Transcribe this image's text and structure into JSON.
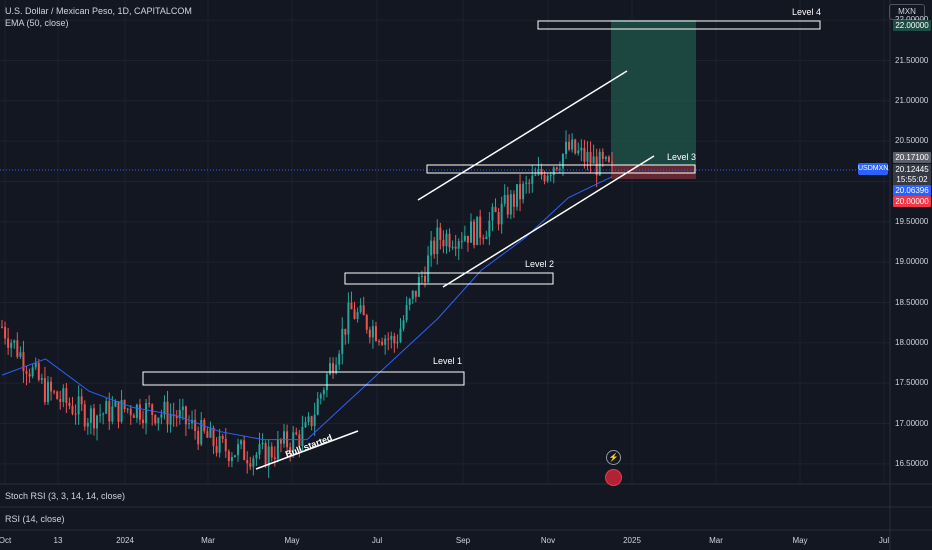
{
  "header": {
    "symbol_line": "U.S. Dollar / Mexican Peso, 1D, CAPITALCOM",
    "indicator_line": "EMA (50, close)"
  },
  "currency_button": "MXN",
  "symbol_tag": "USDMXN",
  "price_tags": {
    "grey": "20.17100",
    "last": "20.12445",
    "countdown": "15:55:02",
    "ema": "20.06396",
    "stop": "20.00000",
    "target": "22.00000"
  },
  "panes": {
    "stoch_label": "Stoch RSI (3, 3, 14, 14, close)",
    "rsi_label": "RSI (14, close)"
  },
  "annotations": {
    "level1": "Level 1",
    "level2": "Level 2",
    "level3": "Level 3",
    "level4": "Level 4",
    "bull": "Bull started"
  },
  "colors": {
    "background": "#131722",
    "up": "#26a69a",
    "down": "#ef5350",
    "ema": "#2962ff",
    "target_zone": "#1e4d45",
    "stop_zone": "#6b2a33"
  },
  "icons": [
    "flash-icon",
    "us-flag-icon"
  ],
  "chart_data": {
    "type": "candlestick",
    "title": "U.S. Dollar / Mexican Peso, 1D, CAPITALCOM",
    "y_ticks": [
      "16.50000",
      "17.00000",
      "17.50000",
      "18.00000",
      "18.50000",
      "19.00000",
      "19.50000",
      "20.00000",
      "20.50000",
      "21.00000",
      "21.50000",
      "22.00000"
    ],
    "x_ticks": [
      "Oct",
      "13",
      "2024",
      "Mar",
      "May",
      "Jul",
      "Sep",
      "Nov",
      "2025",
      "Mar",
      "May",
      "Jul"
    ],
    "ylim": [
      16.25,
      22.25
    ],
    "series": [
      {
        "name": "USDMXN",
        "x": [
          "2023-10",
          "2023-11",
          "2023-12",
          "2024-01",
          "2024-02",
          "2024-03",
          "2024-04",
          "2024-05",
          "2024-06",
          "2024-07",
          "2024-08",
          "2024-09",
          "2024-10",
          "2024-11",
          "2024-12"
        ],
        "close": [
          18.2,
          17.4,
          17.1,
          17.2,
          17.1,
          16.7,
          16.6,
          16.9,
          18.4,
          18.0,
          19.3,
          19.4,
          19.9,
          20.4,
          20.12
        ]
      },
      {
        "name": "EMA (50, close)",
        "x": [
          "2023-10",
          "2023-11",
          "2023-12",
          "2024-01",
          "2024-02",
          "2024-03",
          "2024-04",
          "2024-05",
          "2024-06",
          "2024-07",
          "2024-08",
          "2024-09",
          "2024-10",
          "2024-11",
          "2024-12"
        ],
        "values": [
          17.6,
          17.8,
          17.4,
          17.2,
          17.1,
          16.9,
          16.8,
          16.8,
          17.3,
          17.8,
          18.3,
          18.9,
          19.3,
          19.8,
          20.06
        ]
      }
    ],
    "levels": [
      {
        "label": "Level 1",
        "price": 17.5
      },
      {
        "label": "Level 2",
        "price": 18.65
      },
      {
        "label": "Level 3",
        "price": 20.13
      },
      {
        "label": "Level 4",
        "price": 22.0
      }
    ],
    "position": {
      "entry": 20.17,
      "stop": 20.0,
      "target": 22.0
    }
  }
}
